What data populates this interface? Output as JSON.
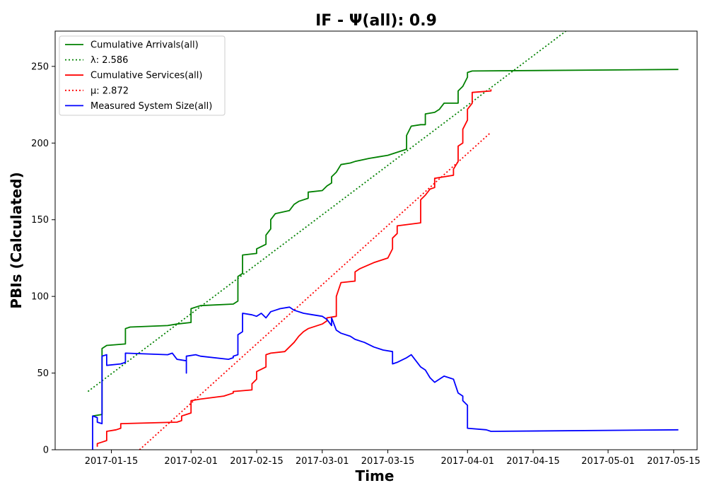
{
  "chart_data": {
    "type": "line",
    "title": "IF -  Ψ(all): 0.9",
    "xlabel": "Time",
    "ylabel": "PBIs (Calculated)",
    "xlim": [
      "2017-01-03",
      "2017-05-20"
    ],
    "ylim": [
      0,
      273
    ],
    "xticks": [
      "2017-01-15",
      "2017-02-01",
      "2017-02-15",
      "2017-03-01",
      "2017-03-15",
      "2017-04-01",
      "2017-04-15",
      "2017-05-01",
      "2017-05-15"
    ],
    "yticks": [
      0,
      50,
      100,
      150,
      200,
      250
    ],
    "grid": false,
    "legend_position": "upper-left",
    "series": [
      {
        "name": "Cumulative Arrivals(all)",
        "color": "#008000",
        "style": "solid",
        "points": [
          [
            "2017-01-11",
            22
          ],
          [
            "2017-01-13",
            23
          ],
          [
            "2017-01-13",
            66
          ],
          [
            "2017-01-14",
            68
          ],
          [
            "2017-01-18",
            69
          ],
          [
            "2017-01-18",
            79
          ],
          [
            "2017-01-19",
            80
          ],
          [
            "2017-01-27",
            81
          ],
          [
            "2017-01-29",
            82
          ],
          [
            "2017-02-01",
            83
          ],
          [
            "2017-02-01",
            92
          ],
          [
            "2017-02-03",
            94
          ],
          [
            "2017-02-10",
            95
          ],
          [
            "2017-02-11",
            97
          ],
          [
            "2017-02-11",
            113
          ],
          [
            "2017-02-12",
            115
          ],
          [
            "2017-02-12",
            127
          ],
          [
            "2017-02-15",
            128
          ],
          [
            "2017-02-15",
            131
          ],
          [
            "2017-02-17",
            134
          ],
          [
            "2017-02-17",
            140
          ],
          [
            "2017-02-18",
            144
          ],
          [
            "2017-02-18",
            150
          ],
          [
            "2017-02-19",
            154
          ],
          [
            "2017-02-22",
            156
          ],
          [
            "2017-02-23",
            160
          ],
          [
            "2017-02-24",
            162
          ],
          [
            "2017-02-26",
            164
          ],
          [
            "2017-02-26",
            168
          ],
          [
            "2017-03-01",
            169
          ],
          [
            "2017-03-02",
            172
          ],
          [
            "2017-03-03",
            174
          ],
          [
            "2017-03-03",
            178
          ],
          [
            "2017-03-04",
            181
          ],
          [
            "2017-03-05",
            186
          ],
          [
            "2017-03-07",
            187
          ],
          [
            "2017-03-08",
            188
          ],
          [
            "2017-03-11",
            190
          ],
          [
            "2017-03-13",
            191
          ],
          [
            "2017-03-15",
            192
          ],
          [
            "2017-03-19",
            196
          ],
          [
            "2017-03-19",
            205
          ],
          [
            "2017-03-20",
            211
          ],
          [
            "2017-03-22",
            212
          ],
          [
            "2017-03-23",
            212
          ],
          [
            "2017-03-23",
            219
          ],
          [
            "2017-03-25",
            220
          ],
          [
            "2017-03-26",
            222
          ],
          [
            "2017-03-27",
            226
          ],
          [
            "2017-03-30",
            226
          ],
          [
            "2017-03-30",
            234
          ],
          [
            "2017-03-31",
            237
          ],
          [
            "2017-04-01",
            243
          ],
          [
            "2017-04-01",
            246
          ],
          [
            "2017-04-02",
            247
          ],
          [
            "2017-05-16",
            248
          ]
        ]
      },
      {
        "name": "λ: 2.586",
        "color": "#008000",
        "style": "dotted",
        "points": [
          [
            "2017-01-10",
            38
          ],
          [
            "2017-04-22",
            273
          ]
        ]
      },
      {
        "name": "Cumulative Services(all)",
        "color": "#ff0000",
        "style": "solid",
        "points": [
          [
            "2017-01-12",
            2
          ],
          [
            "2017-01-12",
            4
          ],
          [
            "2017-01-13",
            5
          ],
          [
            "2017-01-14",
            6
          ],
          [
            "2017-01-14",
            12
          ],
          [
            "2017-01-16",
            13
          ],
          [
            "2017-01-17",
            14
          ],
          [
            "2017-01-17",
            17
          ],
          [
            "2017-01-29",
            18
          ],
          [
            "2017-01-30",
            19
          ],
          [
            "2017-01-30",
            22
          ],
          [
            "2017-01-31",
            23
          ],
          [
            "2017-02-01",
            24
          ],
          [
            "2017-02-01",
            32
          ],
          [
            "2017-02-03",
            33
          ],
          [
            "2017-02-08",
            35
          ],
          [
            "2017-02-10",
            37
          ],
          [
            "2017-02-10",
            38
          ],
          [
            "2017-02-14",
            39
          ],
          [
            "2017-02-14",
            43
          ],
          [
            "2017-02-15",
            46
          ],
          [
            "2017-02-15",
            51
          ],
          [
            "2017-02-17",
            54
          ],
          [
            "2017-02-17",
            62
          ],
          [
            "2017-02-18",
            63
          ],
          [
            "2017-02-21",
            64
          ],
          [
            "2017-02-22",
            67
          ],
          [
            "2017-02-23",
            70
          ],
          [
            "2017-02-24",
            74
          ],
          [
            "2017-02-25",
            77
          ],
          [
            "2017-02-26",
            79
          ],
          [
            "2017-03-01",
            82
          ],
          [
            "2017-03-02",
            84
          ],
          [
            "2017-03-02",
            86
          ],
          [
            "2017-03-04",
            87
          ],
          [
            "2017-03-04",
            100
          ],
          [
            "2017-03-05",
            109
          ],
          [
            "2017-03-08",
            110
          ],
          [
            "2017-03-08",
            116
          ],
          [
            "2017-03-09",
            118
          ],
          [
            "2017-03-12",
            122
          ],
          [
            "2017-03-15",
            125
          ],
          [
            "2017-03-16",
            131
          ],
          [
            "2017-03-16",
            138
          ],
          [
            "2017-03-17",
            141
          ],
          [
            "2017-03-17",
            146
          ],
          [
            "2017-03-22",
            148
          ],
          [
            "2017-03-22",
            163
          ],
          [
            "2017-03-23",
            166
          ],
          [
            "2017-03-24",
            170
          ],
          [
            "2017-03-25",
            171
          ],
          [
            "2017-03-25",
            177
          ],
          [
            "2017-03-27",
            178
          ],
          [
            "2017-03-29",
            179
          ],
          [
            "2017-03-29",
            183
          ],
          [
            "2017-03-30",
            188
          ],
          [
            "2017-03-30",
            198
          ],
          [
            "2017-03-31",
            200
          ],
          [
            "2017-03-31",
            209
          ],
          [
            "2017-04-01",
            215
          ],
          [
            "2017-04-01",
            222
          ],
          [
            "2017-04-02",
            226
          ],
          [
            "2017-04-02",
            233
          ],
          [
            "2017-04-06",
            234
          ],
          [
            "2017-04-06",
            235
          ]
        ]
      },
      {
        "name": "μ: 2.872",
        "color": "#ff0000",
        "style": "dotted",
        "points": [
          [
            "2017-01-21",
            0
          ],
          [
            "2017-04-06",
            207
          ]
        ]
      },
      {
        "name": "Measured System Size(all)",
        "color": "#0000ff",
        "style": "solid",
        "points": [
          [
            "2017-01-11",
            0
          ],
          [
            "2017-01-11",
            22
          ],
          [
            "2017-01-12",
            21
          ],
          [
            "2017-01-12",
            18
          ],
          [
            "2017-01-13",
            17
          ],
          [
            "2017-01-13",
            61
          ],
          [
            "2017-01-14",
            62
          ],
          [
            "2017-01-14",
            55
          ],
          [
            "2017-01-17",
            56
          ],
          [
            "2017-01-18",
            57
          ],
          [
            "2017-01-18",
            63
          ],
          [
            "2017-01-27",
            62
          ],
          [
            "2017-01-28",
            63
          ],
          [
            "2017-01-29",
            59
          ],
          [
            "2017-01-31",
            58
          ],
          [
            "2017-01-31",
            50
          ],
          [
            "2017-01-31",
            61
          ],
          [
            "2017-02-02",
            62
          ],
          [
            "2017-02-03",
            61
          ],
          [
            "2017-02-09",
            59
          ],
          [
            "2017-02-10",
            60
          ],
          [
            "2017-02-10",
            61
          ],
          [
            "2017-02-11",
            62
          ],
          [
            "2017-02-11",
            75
          ],
          [
            "2017-02-12",
            77
          ],
          [
            "2017-02-12",
            89
          ],
          [
            "2017-02-14",
            88
          ],
          [
            "2017-02-15",
            87
          ],
          [
            "2017-02-16",
            89
          ],
          [
            "2017-02-17",
            86
          ],
          [
            "2017-02-18",
            90
          ],
          [
            "2017-02-19",
            91
          ],
          [
            "2017-02-20",
            92
          ],
          [
            "2017-02-22",
            93
          ],
          [
            "2017-02-23",
            91
          ],
          [
            "2017-02-25",
            89
          ],
          [
            "2017-02-27",
            88
          ],
          [
            "2017-03-01",
            87
          ],
          [
            "2017-03-02",
            85
          ],
          [
            "2017-03-03",
            81
          ],
          [
            "2017-03-03",
            86
          ],
          [
            "2017-03-04",
            78
          ],
          [
            "2017-03-05",
            76
          ],
          [
            "2017-03-07",
            74
          ],
          [
            "2017-03-08",
            72
          ],
          [
            "2017-03-10",
            70
          ],
          [
            "2017-03-12",
            67
          ],
          [
            "2017-03-14",
            65
          ],
          [
            "2017-03-16",
            64
          ],
          [
            "2017-03-16",
            56
          ],
          [
            "2017-03-17",
            57
          ],
          [
            "2017-03-19",
            60
          ],
          [
            "2017-03-20",
            62
          ],
          [
            "2017-03-21",
            58
          ],
          [
            "2017-03-22",
            54
          ],
          [
            "2017-03-23",
            52
          ],
          [
            "2017-03-24",
            47
          ],
          [
            "2017-03-25",
            44
          ],
          [
            "2017-03-27",
            48
          ],
          [
            "2017-03-29",
            46
          ],
          [
            "2017-03-30",
            37
          ],
          [
            "2017-03-31",
            35
          ],
          [
            "2017-03-31",
            32
          ],
          [
            "2017-04-01",
            29
          ],
          [
            "2017-04-01",
            20
          ],
          [
            "2017-04-01",
            14
          ],
          [
            "2017-04-05",
            13
          ],
          [
            "2017-04-06",
            12
          ],
          [
            "2017-05-16",
            13
          ]
        ]
      }
    ]
  }
}
